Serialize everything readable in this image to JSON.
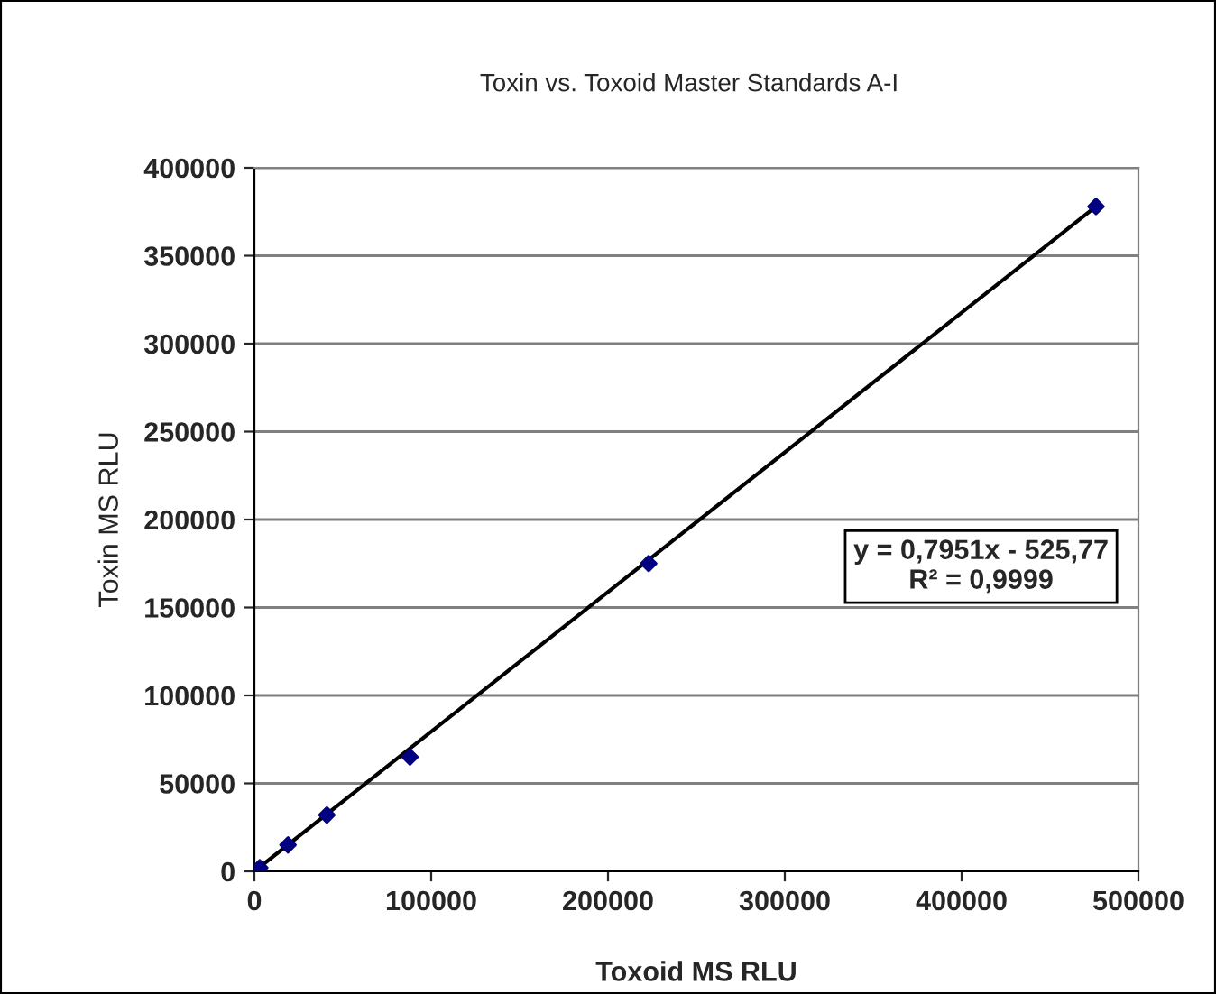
{
  "chart_data": {
    "type": "scatter",
    "title": "Toxin vs. Toxoid Master Standards A-I",
    "xlabel": "Toxoid MS RLU",
    "ylabel": "Toxin MS RLU",
    "xlim": [
      0,
      500000
    ],
    "xticks": [
      0,
      100000,
      200000,
      300000,
      400000,
      500000
    ],
    "ylim": [
      0,
      400000
    ],
    "yticks": [
      0,
      50000,
      100000,
      150000,
      200000,
      250000,
      300000,
      350000,
      400000
    ],
    "grid": "y",
    "legend": false,
    "marker": "diamond",
    "series": [
      {
        "color": "#000080",
        "x": [
          476000,
          223000,
          88000,
          41000,
          19000,
          3000
        ],
        "values": [
          378000,
          175000,
          65000,
          32000,
          15000,
          2000
        ]
      },
      {
        "type": "line",
        "color": "#000000",
        "marker": "none",
        "line_style": "solid",
        "x": [
          0,
          476000
        ],
        "values": [
          0,
          378000
        ]
      }
    ],
    "annotations": [
      "y = 0,7951x - 525,77\nR² = 0,9999"
    ]
  }
}
